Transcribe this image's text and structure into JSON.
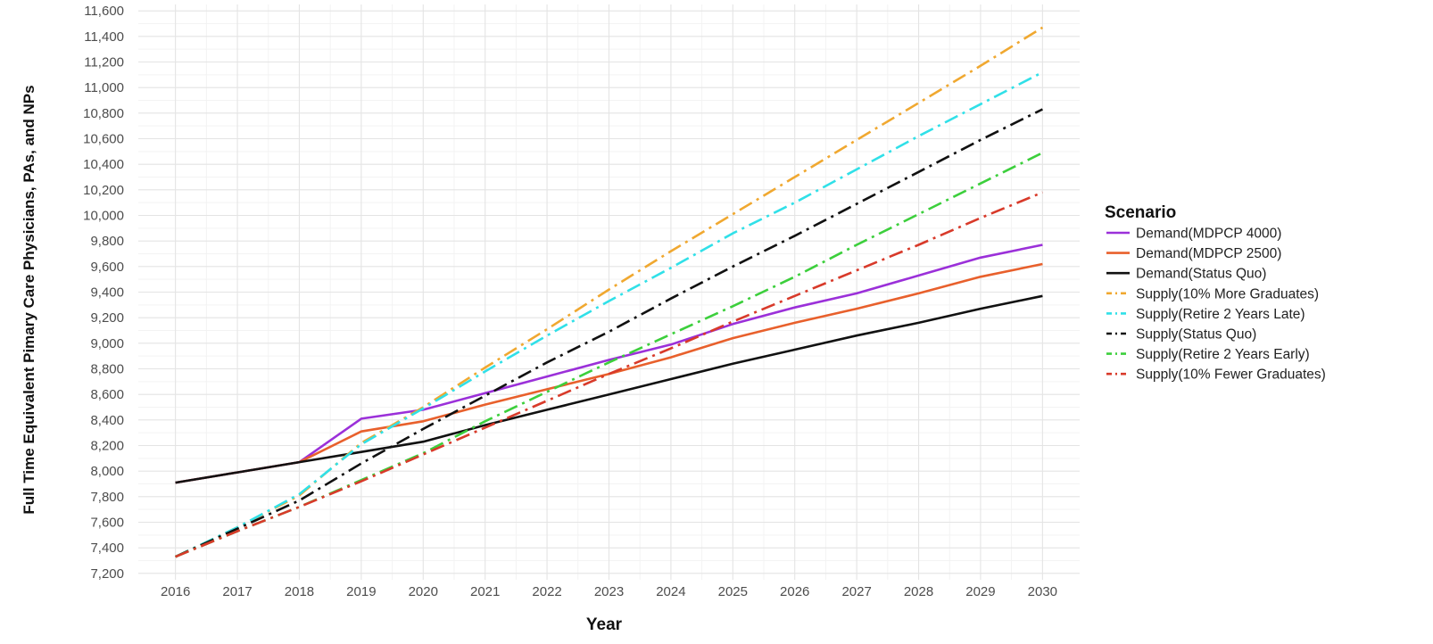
{
  "chart_data": {
    "type": "line",
    "title": "",
    "xlabel": "Year",
    "ylabel": "Full Time Equivalent Pimary Care Physicians, PAs, and NPs",
    "x": [
      2016,
      2017,
      2018,
      2019,
      2020,
      2021,
      2022,
      2023,
      2024,
      2025,
      2026,
      2027,
      2028,
      2029,
      2030
    ],
    "x_tick_labels": [
      "2016",
      "2017",
      "2018",
      "2019",
      "2020",
      "2021",
      "2022",
      "2023",
      "2024",
      "2025",
      "2026",
      "2027",
      "2028",
      "2029",
      "2030"
    ],
    "ylim": [
      7200,
      11600
    ],
    "y_ticks": [
      7200,
      7400,
      7600,
      7800,
      8000,
      8200,
      8400,
      8600,
      8800,
      9000,
      9200,
      9400,
      9600,
      9800,
      10000,
      10200,
      10400,
      10600,
      10800,
      11000,
      11200,
      11400,
      11600
    ],
    "y_tick_labels": [
      "7,200",
      "7,400",
      "7,600",
      "7,800",
      "8,000",
      "8,200",
      "8,400",
      "8,600",
      "8,800",
      "9,000",
      "9,200",
      "9,400",
      "9,600",
      "9,800",
      "10,000",
      "10,200",
      "10,400",
      "10,600",
      "10,800",
      "11,000",
      "11,200",
      "11,400",
      "11,600"
    ],
    "grid": true,
    "legend": {
      "title": "Scenario",
      "position": "right"
    },
    "series": [
      {
        "name": "Demand(MDPCP 4000)",
        "color": "#9b30d9",
        "dash": "solid",
        "values": [
          7910,
          7990,
          8070,
          8410,
          8480,
          8610,
          8740,
          8870,
          8990,
          9150,
          9280,
          9390,
          9530,
          9670,
          9770
        ]
      },
      {
        "name": "Demand(MDPCP 2500)",
        "color": "#e8602c",
        "dash": "solid",
        "values": [
          7910,
          7990,
          8070,
          8310,
          8390,
          8520,
          8640,
          8760,
          8890,
          9040,
          9160,
          9270,
          9390,
          9520,
          9620
        ]
      },
      {
        "name": "Demand(Status Quo)",
        "color": "#111111",
        "dash": "solid",
        "values": [
          7910,
          7990,
          8070,
          8150,
          8230,
          8360,
          8480,
          8600,
          8720,
          8840,
          8950,
          9060,
          9160,
          9270,
          9370
        ]
      },
      {
        "name": "Supply(10% More Graduates)",
        "color": "#f0a830",
        "dash": "dashdot",
        "values": [
          7330,
          7560,
          7810,
          8220,
          8500,
          8810,
          9110,
          9420,
          9720,
          10010,
          10300,
          10590,
          10880,
          11170,
          11470
        ]
      },
      {
        "name": "Supply(Retire 2 Years Late)",
        "color": "#30e0e8",
        "dash": "dashdot",
        "values": [
          7330,
          7560,
          7820,
          8210,
          8490,
          8780,
          9060,
          9330,
          9590,
          9860,
          10100,
          10360,
          10620,
          10870,
          11120
        ]
      },
      {
        "name": "Supply(Status Quo)",
        "color": "#111111",
        "dash": "dashdot",
        "values": [
          7330,
          7550,
          7770,
          8060,
          8330,
          8590,
          8850,
          9090,
          9350,
          9600,
          9840,
          10090,
          10340,
          10590,
          10830
        ]
      },
      {
        "name": "Supply(Retire 2 Years Early)",
        "color": "#3ccf3c",
        "dash": "dashdot",
        "values": [
          7330,
          7530,
          7720,
          7930,
          8140,
          8390,
          8620,
          8850,
          9070,
          9290,
          9520,
          9770,
          10010,
          10250,
          10490
        ]
      },
      {
        "name": "Supply(10% Fewer Graduates)",
        "color": "#d83a2a",
        "dash": "dashdot",
        "values": [
          7330,
          7530,
          7720,
          7920,
          8130,
          8340,
          8550,
          8760,
          8960,
          9170,
          9370,
          9570,
          9770,
          9980,
          10180
        ]
      }
    ]
  }
}
